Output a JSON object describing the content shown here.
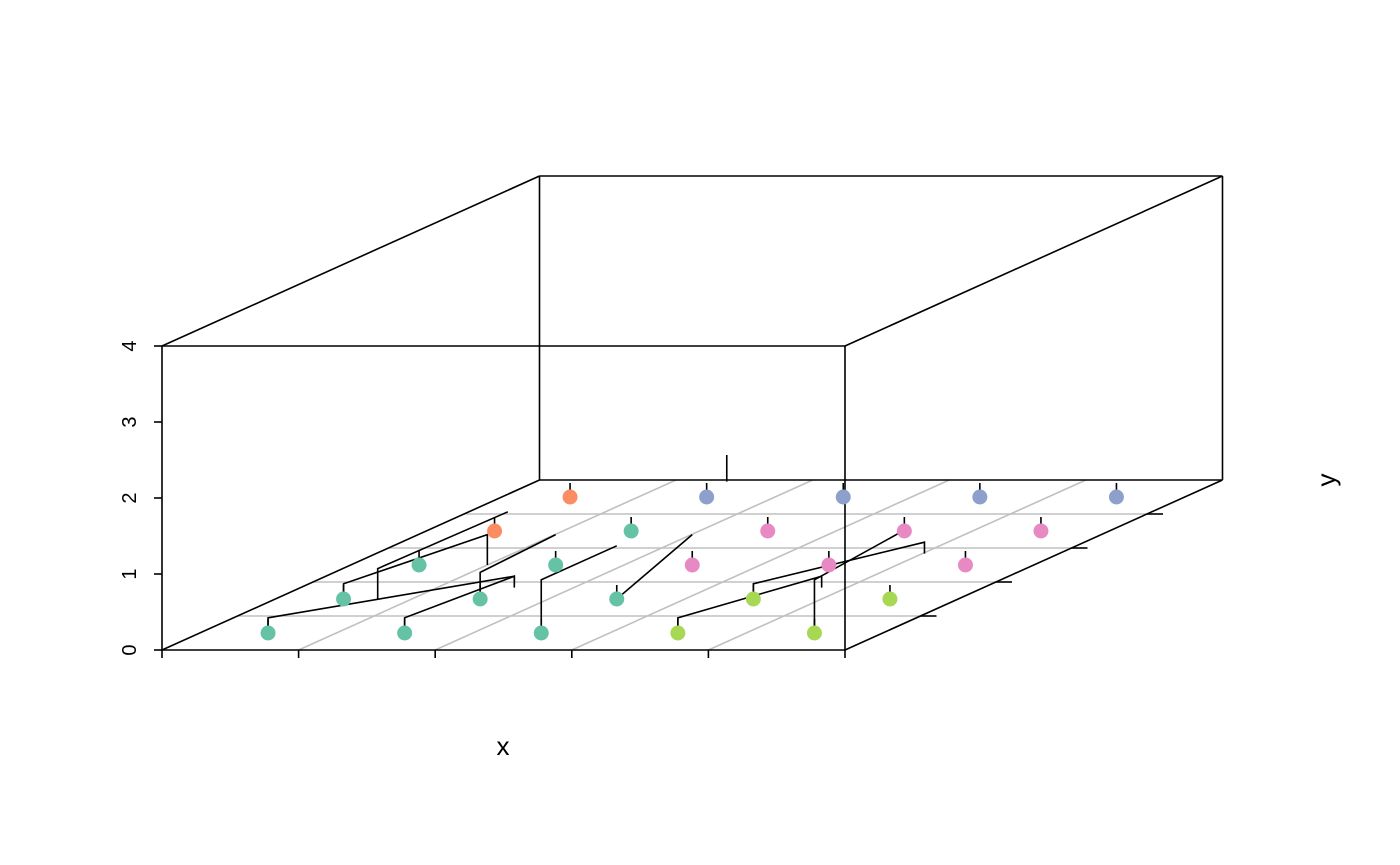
{
  "chart_data": {
    "type": "scatter",
    "subtype": "3d-dendrogram-scatter",
    "title": "",
    "xlabel": "x",
    "ylabel": "y",
    "zlabel": "",
    "xlim": [
      0,
      5
    ],
    "ylim": [
      0,
      5
    ],
    "zlim": [
      0,
      4
    ],
    "z_ticks": [
      0,
      1,
      2,
      3,
      4
    ],
    "grid": true,
    "colors": {
      "teal": "#66C2A5",
      "orange": "#FC8D62",
      "blue": "#8DA0CB",
      "pink": "#E78AC3",
      "green": "#A6D854"
    },
    "points": [
      {
        "x": 0.5,
        "y": 0.5,
        "z": 0,
        "color": "#66C2A5"
      },
      {
        "x": 1.5,
        "y": 0.5,
        "z": 0,
        "color": "#66C2A5"
      },
      {
        "x": 2.5,
        "y": 0.5,
        "z": 0,
        "color": "#66C2A5"
      },
      {
        "x": 3.5,
        "y": 0.5,
        "z": 0,
        "color": "#A6D854"
      },
      {
        "x": 4.5,
        "y": 0.5,
        "z": 0,
        "color": "#A6D854"
      },
      {
        "x": 0.5,
        "y": 1.5,
        "z": 0,
        "color": "#66C2A5"
      },
      {
        "x": 1.5,
        "y": 1.5,
        "z": 0,
        "color": "#66C2A5"
      },
      {
        "x": 2.5,
        "y": 1.5,
        "z": 0,
        "color": "#66C2A5"
      },
      {
        "x": 3.5,
        "y": 1.5,
        "z": 0,
        "color": "#A6D854"
      },
      {
        "x": 4.5,
        "y": 1.5,
        "z": 0,
        "color": "#A6D854"
      },
      {
        "x": 0.5,
        "y": 2.5,
        "z": 0,
        "color": "#66C2A5"
      },
      {
        "x": 1.5,
        "y": 2.5,
        "z": 0,
        "color": "#66C2A5"
      },
      {
        "x": 2.5,
        "y": 2.5,
        "z": 0,
        "color": "#E78AC3"
      },
      {
        "x": 3.5,
        "y": 2.5,
        "z": 0,
        "color": "#E78AC3"
      },
      {
        "x": 4.5,
        "y": 2.5,
        "z": 0,
        "color": "#E78AC3"
      },
      {
        "x": 0.5,
        "y": 3.5,
        "z": 0,
        "color": "#FC8D62"
      },
      {
        "x": 1.5,
        "y": 3.5,
        "z": 0,
        "color": "#66C2A5"
      },
      {
        "x": 2.5,
        "y": 3.5,
        "z": 0,
        "color": "#E78AC3"
      },
      {
        "x": 3.5,
        "y": 3.5,
        "z": 0,
        "color": "#E78AC3"
      },
      {
        "x": 4.5,
        "y": 3.5,
        "z": 0,
        "color": "#E78AC3"
      },
      {
        "x": 0.5,
        "y": 4.5,
        "z": 0,
        "color": "#FC8D62"
      },
      {
        "x": 1.5,
        "y": 4.5,
        "z": 0,
        "color": "#8DA0CB"
      },
      {
        "x": 2.5,
        "y": 4.5,
        "z": 0,
        "color": "#8DA0CB"
      },
      {
        "x": 3.5,
        "y": 4.5,
        "z": 0,
        "color": "#8DA0CB"
      },
      {
        "x": 4.5,
        "y": 4.5,
        "z": 0,
        "color": "#8DA0CB"
      }
    ],
    "dendrogram_segments": [
      [
        [
          0.5,
          0.5,
          0
        ],
        [
          0.5,
          0.5,
          0.2
        ],
        [
          1.75,
          1.5,
          0.3
        ],
        [
          1.75,
          1.5,
          0.2
        ]
      ],
      [
        [
          1.5,
          0.5,
          0
        ],
        [
          1.5,
          0.5,
          0.2
        ],
        [
          1.75,
          1.5,
          0.3
        ],
        [
          1.75,
          1.5,
          0.15
        ]
      ],
      [
        [
          2.5,
          0.5,
          0
        ],
        [
          2.5,
          0.5,
          0.7
        ],
        [
          2.5,
          1.5,
          0.7
        ]
      ],
      [
        [
          0.5,
          1.5,
          0
        ],
        [
          0.5,
          1.5,
          0.2
        ],
        [
          1.0,
          2.5,
          0.4
        ],
        [
          1.0,
          2.5,
          0
        ]
      ],
      [
        [
          0.75,
          1.5,
          0
        ],
        [
          0.75,
          1.5,
          0.4
        ],
        [
          1.15,
          2.5,
          0.7
        ]
      ],
      [
        [
          1.5,
          1.5,
          0
        ],
        [
          1.5,
          1.5,
          0.35
        ],
        [
          1.5,
          2.5,
          0.4
        ]
      ],
      [
        [
          2.5,
          1.5,
          0
        ],
        [
          2.5,
          2.5,
          0.4
        ]
      ],
      [
        [
          2.2,
          3.5,
          0.65
        ],
        [
          2.2,
          3.5,
          1.0
        ]
      ],
      [
        [
          3.5,
          0.5,
          0
        ],
        [
          3.5,
          0.5,
          0.2
        ],
        [
          4.0,
          1.5,
          0.3
        ],
        [
          4.0,
          1.5,
          0.15
        ]
      ],
      [
        [
          4.5,
          0.5,
          0
        ],
        [
          4.5,
          0.5,
          0.7
        ],
        [
          4.6,
          1.5,
          0.9
        ]
      ],
      [
        [
          3.5,
          1.5,
          0
        ],
        [
          3.5,
          1.5,
          0.2
        ],
        [
          4.2,
          2.5,
          0.3
        ],
        [
          4.2,
          2.5,
          0.15
        ]
      ]
    ]
  }
}
